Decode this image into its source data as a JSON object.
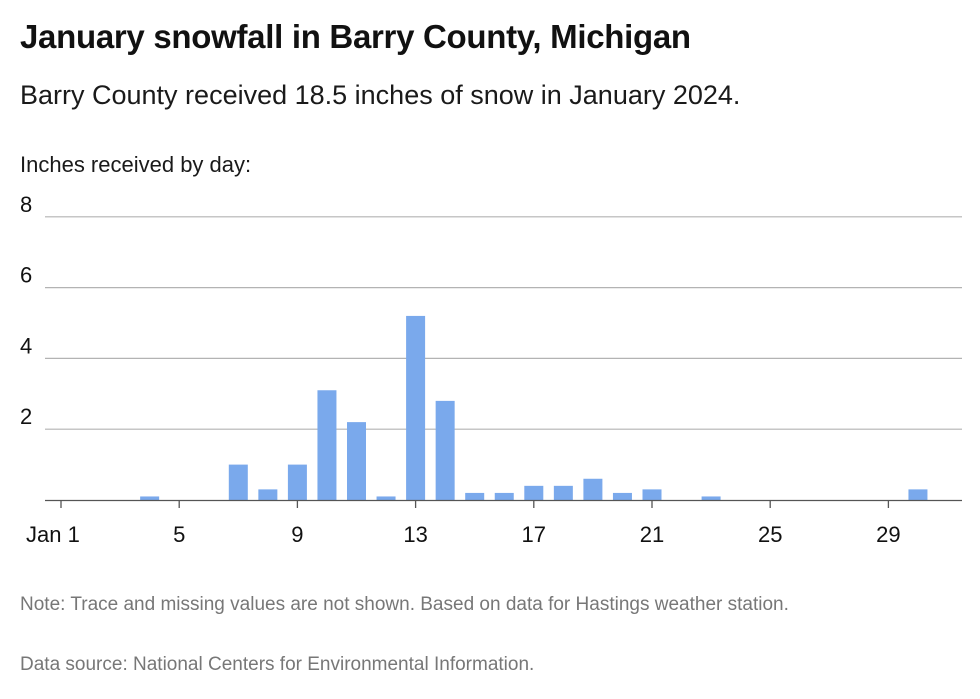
{
  "header": {
    "title": "January snowfall in Barry County, Michigan",
    "subtitle": "Barry County received 18.5 inches of snow in January 2024.",
    "axis_caption": "Inches received by day:"
  },
  "footer": {
    "note": "Note: Trace and missing values are not shown. Based on data for Hastings weather station.",
    "source": "Data source: National Centers for Environmental Information."
  },
  "colors": {
    "bar": "#7aa9ec",
    "grid": "#b3b3b3",
    "baseline": "#555555"
  },
  "chart_data": {
    "type": "bar",
    "title": "January snowfall in Barry County, Michigan",
    "subtitle": "Barry County received 18.5 inches of snow in January 2024.",
    "ylabel": "Inches received by day:",
    "xlabel": "",
    "ylim": [
      0,
      8
    ],
    "yticks": [
      2,
      4,
      6,
      8
    ],
    "x_tick_days": [
      1,
      5,
      9,
      13,
      17,
      21,
      25,
      29
    ],
    "x_tick_labels": [
      "Jan 1",
      "5",
      "9",
      "13",
      "17",
      "21",
      "25",
      "29"
    ],
    "grid": true,
    "series": [
      {
        "days": [
          4,
          7,
          8,
          9,
          10,
          11,
          12,
          13,
          14,
          15,
          16,
          17,
          18,
          19,
          20,
          21,
          23,
          30
        ],
        "values": [
          0.1,
          1.0,
          0.3,
          1.0,
          3.1,
          2.2,
          0.1,
          5.2,
          2.8,
          0.2,
          0.2,
          0.4,
          0.4,
          0.6,
          0.2,
          0.3,
          0.1,
          0.3
        ]
      }
    ]
  }
}
